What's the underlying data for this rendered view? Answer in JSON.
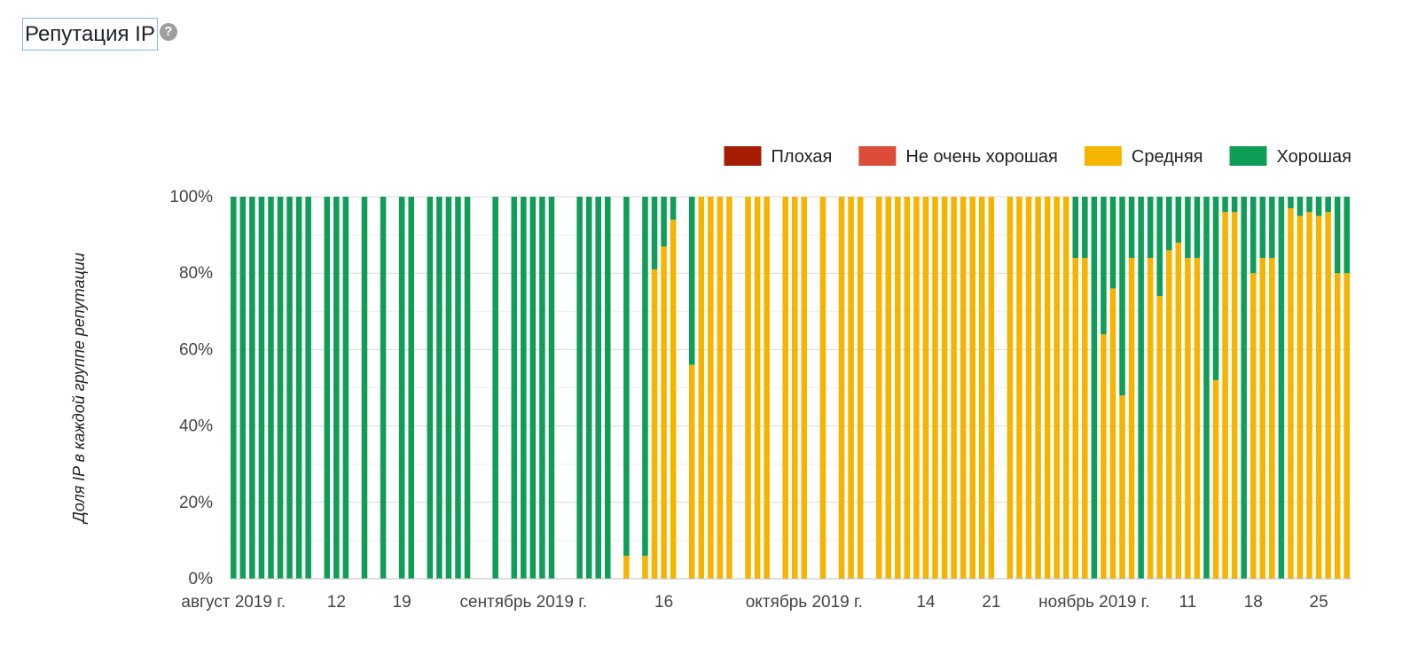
{
  "header": {
    "title": "Репутация IP",
    "help_icon": "?"
  },
  "chart_data": {
    "type": "bar",
    "stacked": true,
    "title": "",
    "ylabel": "Доля IP в каждой группе репутации",
    "xlabel": "",
    "ylim": [
      0,
      100
    ],
    "y_ticks": [
      "0%",
      "20%",
      "40%",
      "60%",
      "80%",
      "100%"
    ],
    "legend": {
      "placement": "top-right",
      "entries": [
        {
          "name": "Плохая",
          "color": "#a61c00"
        },
        {
          "name": "Не очень хорошая",
          "color": "#dd4b39"
        },
        {
          "name": "Средняя",
          "color": "#f4b400"
        },
        {
          "name": "Хорошая",
          "color": "#0f9d58"
        }
      ]
    },
    "x_ticks": [
      {
        "label": "август 2019 г.",
        "day": 0
      },
      {
        "label": "12",
        "day": 11
      },
      {
        "label": "19",
        "day": 18
      },
      {
        "label": "сентябрь 2019 г.",
        "day": 31
      },
      {
        "label": "16",
        "day": 46
      },
      {
        "label": "октябрь 2019 г.",
        "day": 61
      },
      {
        "label": "14",
        "day": 74
      },
      {
        "label": "21",
        "day": 81
      },
      {
        "label": "ноябрь 2019 г.",
        "day": 92
      },
      {
        "label": "11",
        "day": 102
      },
      {
        "label": "18",
        "day": 109
      },
      {
        "label": "25",
        "day": 116
      }
    ],
    "days": 117,
    "series": [
      {
        "name": "Средняя",
        "color": "#f4b400"
      },
      {
        "name": "Хорошая",
        "color": "#0f9d58"
      }
    ],
    "bars": [
      {
        "day": 0,
        "medium": 0,
        "good": 100
      },
      {
        "day": 1,
        "medium": 0,
        "good": 100
      },
      {
        "day": 2,
        "medium": 0,
        "good": 100
      },
      {
        "day": 3,
        "medium": 0,
        "good": 100
      },
      {
        "day": 4,
        "medium": 0,
        "good": 100
      },
      {
        "day": 5,
        "medium": 0,
        "good": 100
      },
      {
        "day": 6,
        "medium": 0,
        "good": 100
      },
      {
        "day": 7,
        "medium": 0,
        "good": 100
      },
      {
        "day": 8,
        "medium": 0,
        "good": 100
      },
      {
        "day": 10,
        "medium": 0,
        "good": 100
      },
      {
        "day": 11,
        "medium": 0,
        "good": 100
      },
      {
        "day": 12,
        "medium": 0,
        "good": 100
      },
      {
        "day": 14,
        "medium": 0,
        "good": 100
      },
      {
        "day": 16,
        "medium": 0,
        "good": 100
      },
      {
        "day": 18,
        "medium": 0,
        "good": 100
      },
      {
        "day": 19,
        "medium": 0,
        "good": 100
      },
      {
        "day": 21,
        "medium": 0,
        "good": 100
      },
      {
        "day": 22,
        "medium": 0,
        "good": 100
      },
      {
        "day": 23,
        "medium": 0,
        "good": 100
      },
      {
        "day": 24,
        "medium": 0,
        "good": 100
      },
      {
        "day": 25,
        "medium": 0,
        "good": 100
      },
      {
        "day": 28,
        "medium": 0,
        "good": 100
      },
      {
        "day": 30,
        "medium": 0,
        "good": 100
      },
      {
        "day": 31,
        "medium": 0,
        "good": 100
      },
      {
        "day": 32,
        "medium": 0,
        "good": 100
      },
      {
        "day": 33,
        "medium": 0,
        "good": 100
      },
      {
        "day": 34,
        "medium": 0,
        "good": 100
      },
      {
        "day": 37,
        "medium": 0,
        "good": 100
      },
      {
        "day": 38,
        "medium": 0,
        "good": 100
      },
      {
        "day": 39,
        "medium": 0,
        "good": 100
      },
      {
        "day": 40,
        "medium": 0,
        "good": 100
      },
      {
        "day": 42,
        "medium": 6,
        "good": 94
      },
      {
        "day": 44,
        "medium": 6,
        "good": 94
      },
      {
        "day": 45,
        "medium": 81,
        "good": 19
      },
      {
        "day": 46,
        "medium": 87,
        "good": 13
      },
      {
        "day": 47,
        "medium": 94,
        "good": 6
      },
      {
        "day": 49,
        "medium": 56,
        "good": 44
      },
      {
        "day": 50,
        "medium": 100,
        "good": 0
      },
      {
        "day": 51,
        "medium": 100,
        "good": 0
      },
      {
        "day": 52,
        "medium": 100,
        "good": 0
      },
      {
        "day": 53,
        "medium": 100,
        "good": 0
      },
      {
        "day": 55,
        "medium": 100,
        "good": 0
      },
      {
        "day": 56,
        "medium": 100,
        "good": 0
      },
      {
        "day": 57,
        "medium": 100,
        "good": 0
      },
      {
        "day": 59,
        "medium": 100,
        "good": 0
      },
      {
        "day": 60,
        "medium": 100,
        "good": 0
      },
      {
        "day": 61,
        "medium": 100,
        "good": 0
      },
      {
        "day": 63,
        "medium": 100,
        "good": 0
      },
      {
        "day": 65,
        "medium": 100,
        "good": 0
      },
      {
        "day": 66,
        "medium": 100,
        "good": 0
      },
      {
        "day": 67,
        "medium": 100,
        "good": 0
      },
      {
        "day": 69,
        "medium": 100,
        "good": 0
      },
      {
        "day": 70,
        "medium": 100,
        "good": 0
      },
      {
        "day": 71,
        "medium": 100,
        "good": 0
      },
      {
        "day": 72,
        "medium": 100,
        "good": 0
      },
      {
        "day": 73,
        "medium": 100,
        "good": 0
      },
      {
        "day": 74,
        "medium": 100,
        "good": 0
      },
      {
        "day": 75,
        "medium": 100,
        "good": 0
      },
      {
        "day": 76,
        "medium": 100,
        "good": 0
      },
      {
        "day": 77,
        "medium": 100,
        "good": 0
      },
      {
        "day": 78,
        "medium": 100,
        "good": 0
      },
      {
        "day": 79,
        "medium": 100,
        "good": 0
      },
      {
        "day": 80,
        "medium": 100,
        "good": 0
      },
      {
        "day": 81,
        "medium": 100,
        "good": 0
      },
      {
        "day": 83,
        "medium": 100,
        "good": 0
      },
      {
        "day": 84,
        "medium": 100,
        "good": 0
      },
      {
        "day": 85,
        "medium": 100,
        "good": 0
      },
      {
        "day": 86,
        "medium": 100,
        "good": 0
      },
      {
        "day": 87,
        "medium": 100,
        "good": 0
      },
      {
        "day": 88,
        "medium": 100,
        "good": 0
      },
      {
        "day": 89,
        "medium": 100,
        "good": 0
      },
      {
        "day": 90,
        "medium": 84,
        "good": 16
      },
      {
        "day": 91,
        "medium": 84,
        "good": 16
      },
      {
        "day": 92,
        "medium": 0,
        "good": 100
      },
      {
        "day": 93,
        "medium": 64,
        "good": 36
      },
      {
        "day": 94,
        "medium": 76,
        "good": 24
      },
      {
        "day": 95,
        "medium": 48,
        "good": 52
      },
      {
        "day": 96,
        "medium": 84,
        "good": 16
      },
      {
        "day": 97,
        "medium": 0,
        "good": 100
      },
      {
        "day": 98,
        "medium": 84,
        "good": 16
      },
      {
        "day": 99,
        "medium": 74,
        "good": 26
      },
      {
        "day": 100,
        "medium": 86,
        "good": 14
      },
      {
        "day": 101,
        "medium": 88,
        "good": 12
      },
      {
        "day": 102,
        "medium": 84,
        "good": 16
      },
      {
        "day": 103,
        "medium": 84,
        "good": 16
      },
      {
        "day": 104,
        "medium": 0,
        "good": 100
      },
      {
        "day": 105,
        "medium": 52,
        "good": 48
      },
      {
        "day": 106,
        "medium": 96,
        "good": 4
      },
      {
        "day": 107,
        "medium": 96,
        "good": 4
      },
      {
        "day": 108,
        "medium": 0,
        "good": 100
      },
      {
        "day": 109,
        "medium": 80,
        "good": 20
      },
      {
        "day": 110,
        "medium": 84,
        "good": 16
      },
      {
        "day": 111,
        "medium": 84,
        "good": 16
      },
      {
        "day": 112,
        "medium": 0,
        "good": 100
      },
      {
        "day": 113,
        "medium": 97,
        "good": 3
      },
      {
        "day": 114,
        "medium": 95,
        "good": 5
      },
      {
        "day": 115,
        "medium": 96,
        "good": 4
      },
      {
        "day": 116,
        "medium": 95,
        "good": 5
      },
      {
        "day": 117,
        "medium": 96,
        "good": 4
      },
      {
        "day": 118,
        "medium": 80,
        "good": 20
      },
      {
        "day": 119,
        "medium": 80,
        "good": 20
      }
    ]
  }
}
